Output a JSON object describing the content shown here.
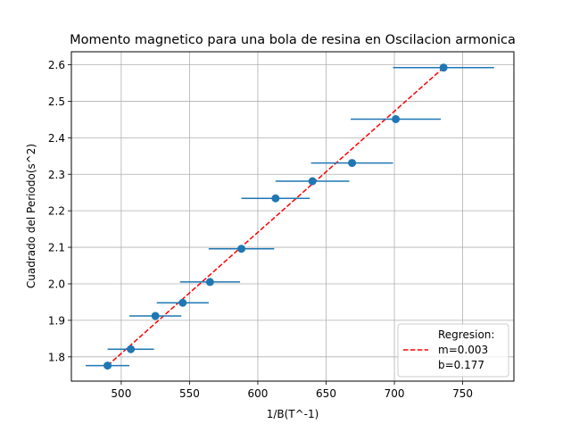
{
  "chart_data": {
    "type": "scatter",
    "title": "Momento magnetico para una bola de resina en Oscilacion armonica",
    "xlabel": "1/B(T^-1)",
    "ylabel": "Cuadrado del Periodo(s^2)",
    "xlim": [
      463.5,
      787.5
    ],
    "ylim": [
      1.7335,
      2.6355
    ],
    "xticks": [
      500,
      550,
      600,
      650,
      700,
      750
    ],
    "yticks": [
      1.8,
      1.9,
      2.0,
      2.1,
      2.2,
      2.3,
      2.4,
      2.5,
      2.6
    ],
    "xtick_labels": [
      "500",
      "550",
      "600",
      "650",
      "700",
      "750"
    ],
    "ytick_labels": [
      "1.8",
      "1.9",
      "2.0",
      "2.1",
      "2.2",
      "2.3",
      "2.4",
      "2.5",
      "2.6"
    ],
    "grid": true,
    "series": [
      {
        "kind": "errorbar",
        "color": "#1f77b4",
        "points": [
          {
            "x": 490,
            "y": 1.776,
            "xerr": 16
          },
          {
            "x": 507,
            "y": 1.821,
            "xerr": 17
          },
          {
            "x": 525,
            "y": 1.912,
            "xerr": 19
          },
          {
            "x": 545,
            "y": 1.948,
            "xerr": 19
          },
          {
            "x": 565,
            "y": 2.005,
            "xerr": 22
          },
          {
            "x": 588,
            "y": 2.096,
            "xerr": 24
          },
          {
            "x": 613,
            "y": 2.234,
            "xerr": 25
          },
          {
            "x": 640,
            "y": 2.281,
            "xerr": 27
          },
          {
            "x": 669,
            "y": 2.331,
            "xerr": 30
          },
          {
            "x": 701,
            "y": 2.451,
            "xerr": 33
          },
          {
            "x": 736,
            "y": 2.592,
            "xerr": 37
          }
        ]
      },
      {
        "kind": "fit",
        "color": "#ff0000",
        "style": "dashed",
        "x": [
          490,
          736
        ],
        "y": [
          1.776,
          2.592
        ]
      }
    ],
    "legend": {
      "position": "lower-right",
      "lines": [
        "Regresion:",
        "m=0.003",
        "b=0.177"
      ]
    }
  }
}
